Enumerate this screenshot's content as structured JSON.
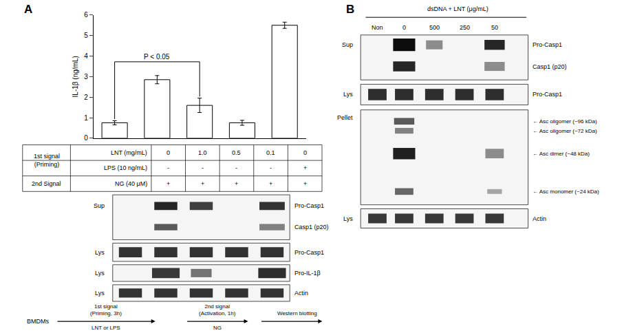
{
  "chart_data": {
    "type": "bar",
    "categories": [
      null,
      null,
      null,
      null,
      null
    ],
    "values": [
      0.75,
      2.85,
      1.6,
      0.75,
      5.5
    ],
    "errors": [
      0.1,
      0.2,
      0.35,
      0.12,
      0.15
    ],
    "color": "#ffffff",
    "ylabel": "IL-1β (ng/mL)",
    "ylim": [
      0,
      6
    ],
    "yticks": [
      0,
      1,
      2,
      3,
      4,
      5,
      6
    ],
    "grid": false,
    "tick_labels": "y",
    "annotations": [
      "P < 0.05"
    ],
    "panel_labels": [
      "A",
      "B"
    ],
    "table": {
      "groups": [
        [
          "1st signal",
          "(Priming)"
        ],
        [
          "2nd Signal"
        ]
      ],
      "rows": [
        {
          "label": "LNT (mg/mL)",
          "cells": [
            "0",
            "1.0",
            "0.5",
            "0.1",
            "0"
          ]
        },
        {
          "label": "LPS (10 ng/mL)",
          "cells": [
            "-",
            "-",
            "-",
            "-",
            "+"
          ]
        },
        {
          "label": "NG (40 μM)",
          "cells": [
            "+",
            "+",
            "+",
            "+",
            "+"
          ]
        }
      ]
    },
    "blots_A": [
      {
        "left": "Sup",
        "right": [
          "Pro-Casp1",
          "Casp1 (p20)"
        ]
      },
      {
        "left": "Lys",
        "right": [
          "Pro-Casp1"
        ]
      },
      {
        "left": "Lys",
        "right": [
          "Pro-IL-1β"
        ]
      },
      {
        "left": "Lys",
        "right": [
          "Actin"
        ]
      }
    ],
    "flow": {
      "start": "BMDMs",
      "steps": [
        [
          "1st signal",
          "(Priming, 3h)",
          "LNT or LPS"
        ],
        [
          "2nd signal",
          "(Activation, 1h)",
          "NG"
        ]
      ],
      "end": "Western blotting"
    },
    "blots_B": {
      "title": "dsDNA + LNT (μg/mL)",
      "lanes": [
        "Non",
        "0",
        "500",
        "250",
        "50"
      ],
      "panels": [
        {
          "left": "Sup",
          "right": [
            "Pro-Casp1",
            "Casp1 (p20)"
          ]
        },
        {
          "left": "Lys",
          "right": [
            "Pro-Casp1"
          ]
        },
        {
          "left": "Pellet",
          "right": [
            "← Asc oligomer (~96 kDa)",
            "← Asc oligomer (~72 kDa)",
            "← Asc dimer (~48 kDa)",
            "← Asc monomer (~24 kDa)"
          ]
        },
        {
          "left": "Lys",
          "right": [
            "Actin"
          ]
        }
      ]
    }
  }
}
